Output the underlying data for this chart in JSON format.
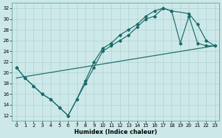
{
  "xlabel": "Humidex (Indice chaleur)",
  "xlim": [
    -0.5,
    23.5
  ],
  "ylim": [
    11,
    33
  ],
  "xticks": [
    0,
    1,
    2,
    3,
    4,
    5,
    6,
    7,
    8,
    9,
    10,
    11,
    12,
    13,
    14,
    15,
    16,
    17,
    18,
    19,
    20,
    21,
    22,
    23
  ],
  "yticks": [
    12,
    14,
    16,
    18,
    20,
    22,
    24,
    26,
    28,
    30,
    32
  ],
  "bg_color": "#cde8e8",
  "grid_color": "#b0d0d0",
  "line_color": "#1a6b6b",
  "line1_x": [
    0,
    1,
    2,
    3,
    4,
    5,
    6,
    7,
    8,
    9,
    10,
    11,
    12,
    13,
    14,
    15,
    16,
    17,
    18,
    19,
    20,
    21,
    22,
    23
  ],
  "line1_y": [
    21,
    19,
    17.5,
    16,
    15,
    13.5,
    12,
    15,
    18,
    21,
    24,
    25,
    26,
    27,
    28.5,
    30,
    30.5,
    32,
    31.5,
    25.5,
    30.5,
    25.5,
    25,
    25
  ],
  "line2_x": [
    0,
    1,
    2,
    3,
    4,
    5,
    6,
    7,
    8,
    9,
    10,
    11,
    12,
    13,
    14,
    15,
    16,
    17,
    18,
    20,
    21,
    22,
    23
  ],
  "line2_y": [
    21,
    19,
    17.5,
    16,
    15,
    13.5,
    12,
    15,
    18.5,
    22,
    24.5,
    25.5,
    27,
    28,
    29,
    30.5,
    31.5,
    32,
    31.5,
    31,
    29,
    26,
    25
  ],
  "line3_x": [
    0,
    23
  ],
  "line3_y": [
    19,
    25
  ],
  "marker": "D",
  "markersize": 2.0,
  "linewidth": 0.9
}
